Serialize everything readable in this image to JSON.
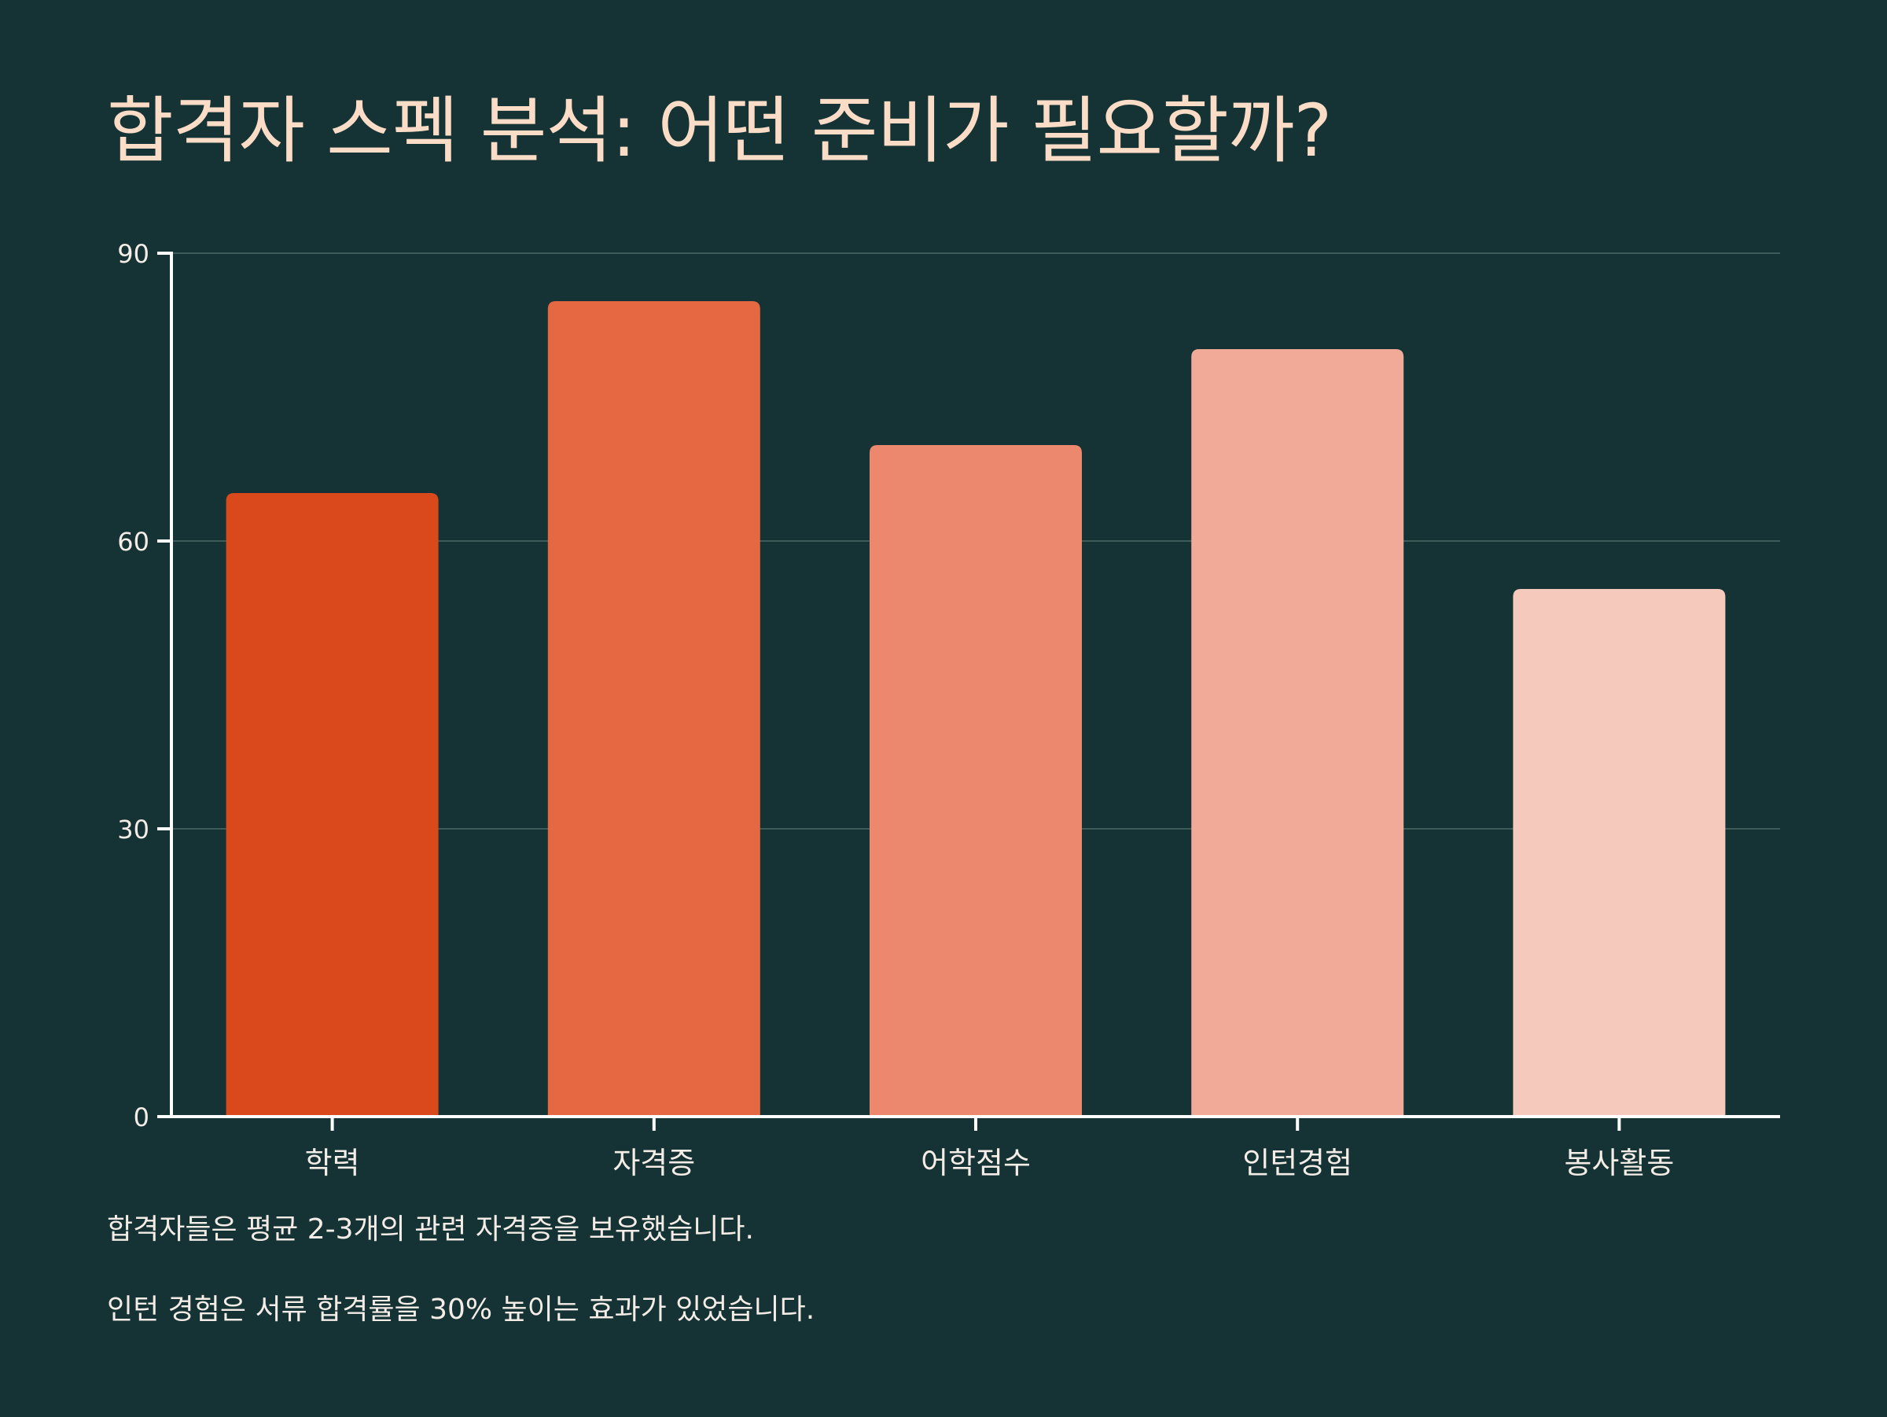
{
  "title": "합격자 스펙 분석: 어떤 준비가 필요할까?",
  "chart_data": {
    "type": "bar",
    "categories": [
      "학력",
      "자격증",
      "어학점수",
      "인턴경험",
      "봉사활동"
    ],
    "values": [
      65,
      85,
      70,
      80,
      55
    ],
    "ylim": [
      0,
      90
    ],
    "yticks": [
      0,
      30,
      60,
      90
    ],
    "xlabel": "",
    "ylabel": "",
    "grid": true,
    "colors": [
      "#d9491c",
      "#e66842",
      "#ec886d",
      "#f0aa97",
      "#f6c9bd"
    ]
  },
  "notes": [
    "합격자들은 평균 2-3개의 관련 자격증을 보유했습니다.",
    "인턴 경험은 서류 합격률을 30% 높이는 효과가 있었습니다."
  ],
  "colors": {
    "background": "#153334",
    "title": "#fbdcc6",
    "text": "#f4ece6",
    "axis": "#ffffff",
    "grid": "#3e5a59"
  }
}
